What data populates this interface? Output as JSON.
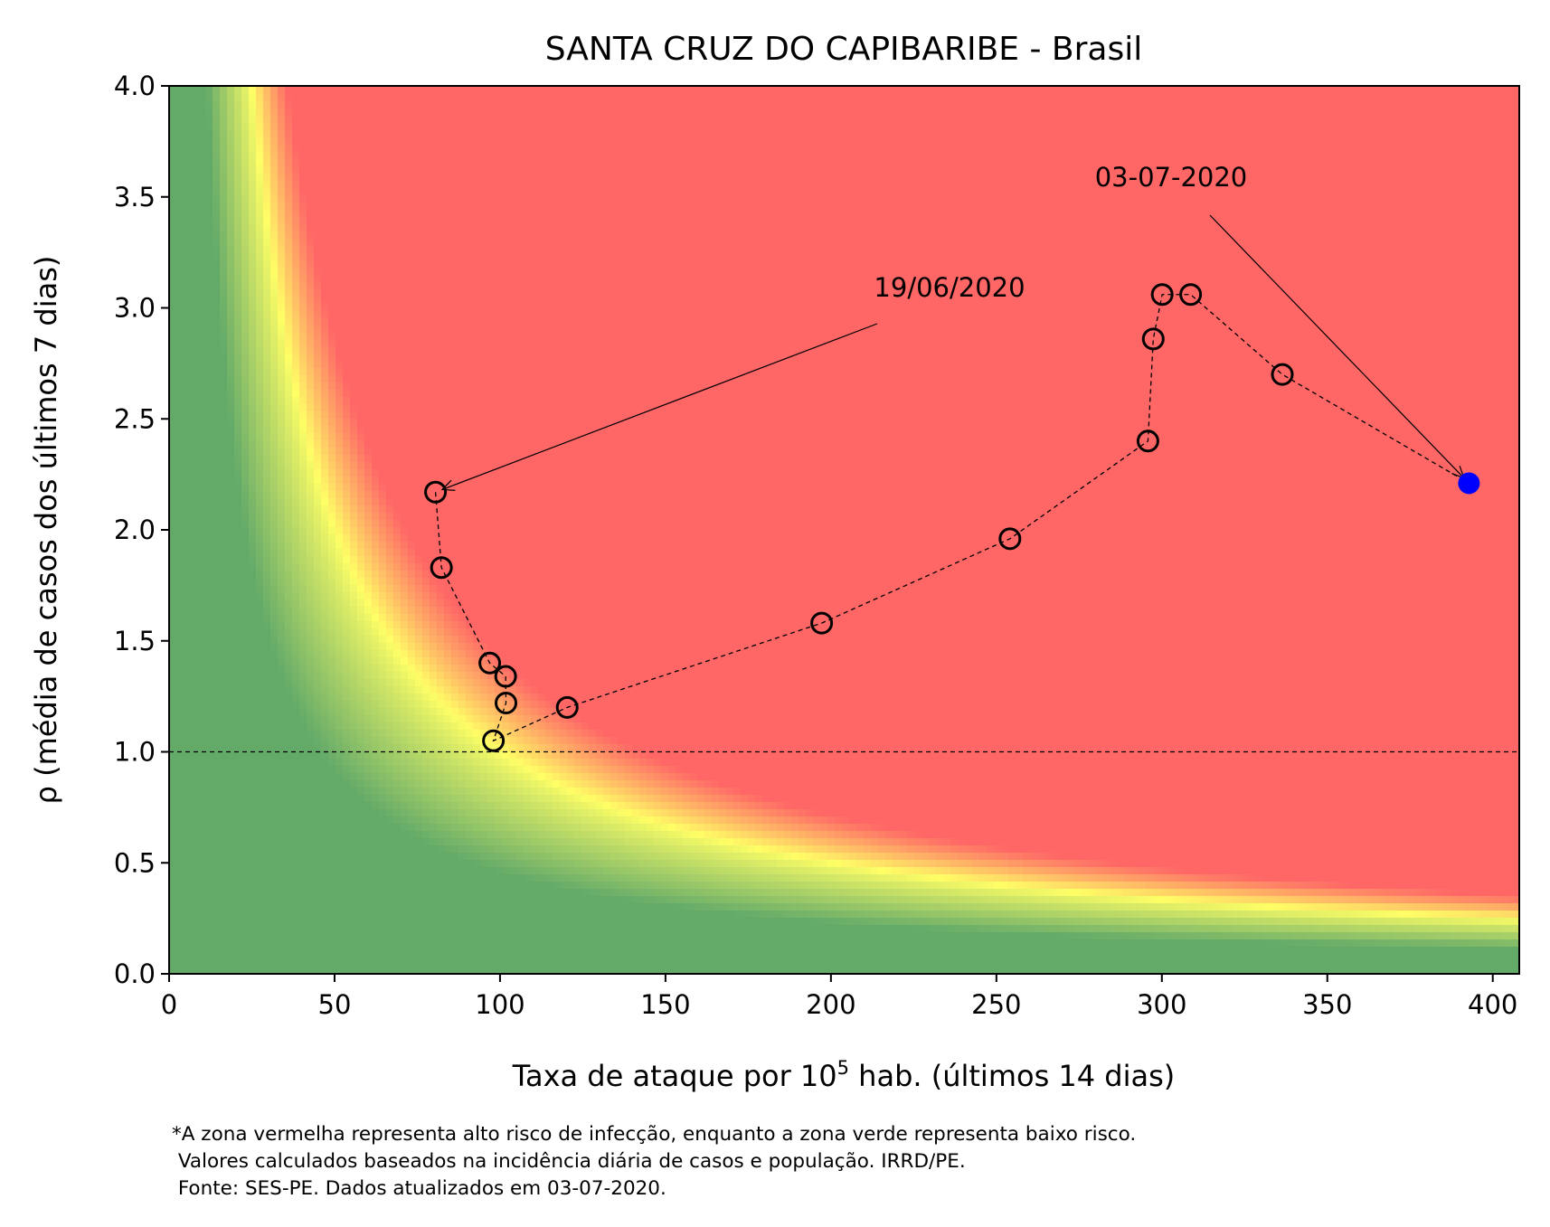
{
  "chart_data": {
    "type": "scatter",
    "title": "SANTA CRUZ DO CAPIBARIBE - Brasil",
    "xlabel_prefix": "Taxa de ataque por 10",
    "xlabel_sup": "5",
    "xlabel_suffix": " hab. (últimos 14 dias)",
    "ylabel": "ρ (média de casos dos últimos 7 dias)",
    "xlim": [
      0,
      408
    ],
    "ylim": [
      0,
      4
    ],
    "xticks": [
      0,
      50,
      100,
      150,
      200,
      250,
      300,
      350,
      400
    ],
    "yticks": [
      "0.0",
      "0.5",
      "1.0",
      "1.5",
      "2.0",
      "2.5",
      "3.0",
      "3.5",
      "4.0"
    ],
    "reference_line_y": 1.0,
    "background": "risk gradient: green (low) - yellow - red (high)",
    "colors": {
      "green": "#63aa69",
      "yellow": "#ffff66",
      "red": "#ff6666",
      "marker_last": "#0000ff",
      "marker_edge": "#000000"
    },
    "series": [
      {
        "x": [
          80.5,
          82.3,
          96.9,
          101.7,
          101.8,
          98.0,
          120.3,
          197.2,
          254.1,
          295.8,
          297.4,
          300.1,
          308.7,
          336.4,
          392.8
        ],
        "y": [
          2.17,
          1.83,
          1.4,
          1.34,
          1.22,
          1.05,
          1.2,
          1.58,
          1.96,
          2.4,
          2.86,
          3.06,
          3.06,
          2.7,
          2.21
        ]
      }
    ],
    "annotations": [
      {
        "text": "19/06/2020",
        "point_index": 0
      },
      {
        "text": "03-07-2020",
        "point_index": 14
      }
    ]
  },
  "footnote": {
    "line1": "*A zona vermelha representa alto risco de infecção, enquanto a zona verde representa baixo risco.",
    "line2": " Valores calculados baseados na incidência diária de casos e população. IRRD/PE.",
    "line3": " Fonte: SES-PE. Dados atualizados em 03-07-2020."
  }
}
